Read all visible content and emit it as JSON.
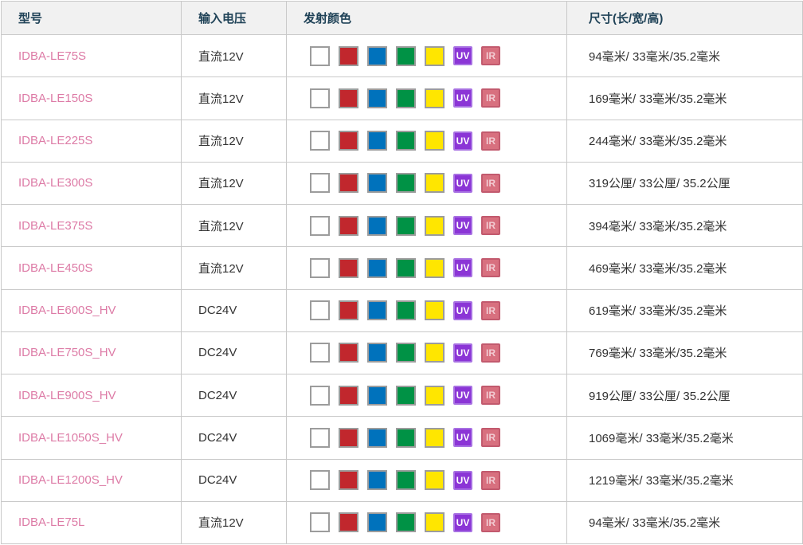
{
  "table": {
    "headers": {
      "model": "型号",
      "voltage": "输入电压",
      "emission_color": "发射颜色",
      "dimensions": "尺寸(长/宽/高)"
    },
    "swatches": [
      {
        "name": "white",
        "hex": "#ffffff",
        "border": "#9c9c9c"
      },
      {
        "name": "red",
        "hex": "#c1272d",
        "border": "#9c9c9c"
      },
      {
        "name": "blue",
        "hex": "#0072bc",
        "border": "#9c9c9c"
      },
      {
        "name": "green",
        "hex": "#009245",
        "border": "#9c9c9c"
      },
      {
        "name": "yellow",
        "hex": "#ffe600",
        "border": "#9c9c9c"
      },
      {
        "name": "uv",
        "label": "UV",
        "hex": "#8b35d6",
        "border": "#a770e2",
        "text": "#ffffff"
      },
      {
        "name": "ir",
        "label": "IR",
        "hex": "#d8707f",
        "border": "#c25a6e",
        "text": "#f2ccd3"
      }
    ],
    "rows": [
      {
        "model": "IDBA-LE75S",
        "voltage": "直流12V",
        "size": "94毫米/ 33毫米/35.2毫米"
      },
      {
        "model": "IDBA-LE150S",
        "voltage": "直流12V",
        "size": "169毫米/ 33毫米/35.2毫米"
      },
      {
        "model": "IDBA-LE225S",
        "voltage": "直流12V",
        "size": "244毫米/ 33毫米/35.2毫米"
      },
      {
        "model": "IDBA-LE300S",
        "voltage": "直流12V",
        "size": "319公厘/ 33公厘/ 35.2公厘"
      },
      {
        "model": "IDBA-LE375S",
        "voltage": "直流12V",
        "size": "394毫米/ 33毫米/35.2毫米"
      },
      {
        "model": "IDBA-LE450S",
        "voltage": "直流12V",
        "size": "469毫米/ 33毫米/35.2毫米"
      },
      {
        "model": "IDBA-LE600S_HV",
        "voltage": "DC24V",
        "size": "619毫米/ 33毫米/35.2毫米"
      },
      {
        "model": "IDBA-LE750S_HV",
        "voltage": "DC24V",
        "size": "769毫米/ 33毫米/35.2毫米"
      },
      {
        "model": "IDBA-LE900S_HV",
        "voltage": "DC24V",
        "size": "919公厘/ 33公厘/ 35.2公厘"
      },
      {
        "model": "IDBA-LE1050S_HV",
        "voltage": "DC24V",
        "size": "1069毫米/ 33毫米/35.2毫米"
      },
      {
        "model": "IDBA-LE1200S_HV",
        "voltage": "DC24V",
        "size": "1219毫米/ 33毫米/35.2毫米"
      },
      {
        "model": "IDBA-LE75L",
        "voltage": "直流12V",
        "size": "94毫米/ 33毫米/35.2毫米"
      }
    ],
    "colors": {
      "header_text": "#1f4257",
      "header_bg": "#f1f1f1",
      "model_link": "#dd7ba6",
      "body_text": "#333333",
      "outer_border": "#999999",
      "inner_border": "#c9c9c9"
    }
  }
}
